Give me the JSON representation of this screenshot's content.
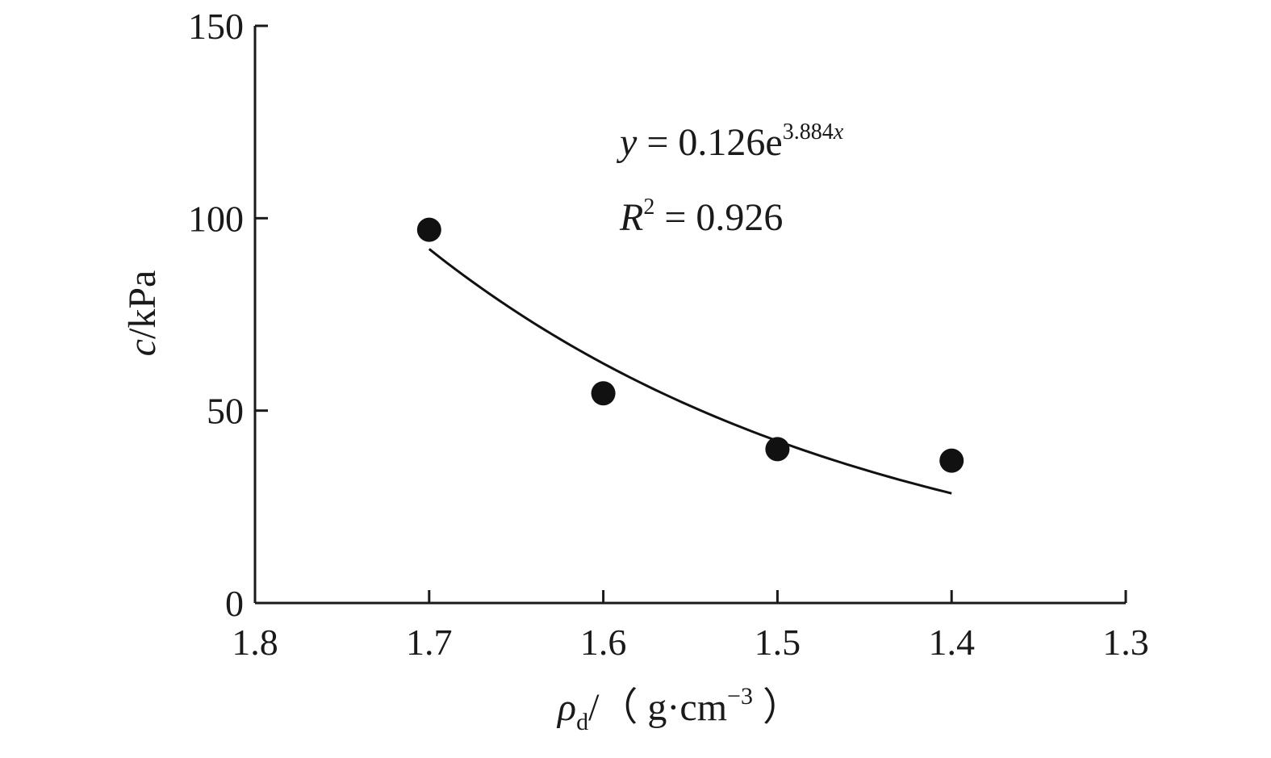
{
  "chart_data": {
    "type": "scatter",
    "xlabel": {
      "symbol": "ρ",
      "subscript": "d",
      "unit_open": "/（ g·cm",
      "unit_exponent": "−3",
      "unit_close": " ）"
    },
    "ylabel": {
      "symbol": "c",
      "unit": "/kPa"
    },
    "x_reversed": true,
    "xlim": [
      1.8,
      1.3
    ],
    "ylim": [
      0,
      150
    ],
    "x_ticks": [
      1.8,
      1.7,
      1.6,
      1.5,
      1.4,
      1.3
    ],
    "x_tick_labels": [
      "1.8",
      "1.7",
      "1.6",
      "1.5",
      "1.4",
      "1.3"
    ],
    "y_ticks": [
      0,
      50,
      100,
      150
    ],
    "y_tick_labels": [
      "0",
      "50",
      "100",
      "150"
    ],
    "grid": false,
    "points": [
      {
        "x": 1.7,
        "y": 97
      },
      {
        "x": 1.6,
        "y": 54.5
      },
      {
        "x": 1.5,
        "y": 40
      },
      {
        "x": 1.4,
        "y": 37
      }
    ],
    "fit": {
      "x_range": [
        1.7,
        1.4
      ],
      "y_start": 92,
      "y_end": 28.5
    },
    "annotation": {
      "eq_y": "y",
      "eq_mid": " = 0.126e",
      "eq_exp_num": "3.884",
      "eq_exp_var": "x",
      "r2_symbol": "R",
      "r2_sup": "2",
      "r2_value": " = 0.926"
    },
    "colors": {
      "marker": "#111111",
      "line": "#111111",
      "axis": "#1a1a1a"
    }
  }
}
